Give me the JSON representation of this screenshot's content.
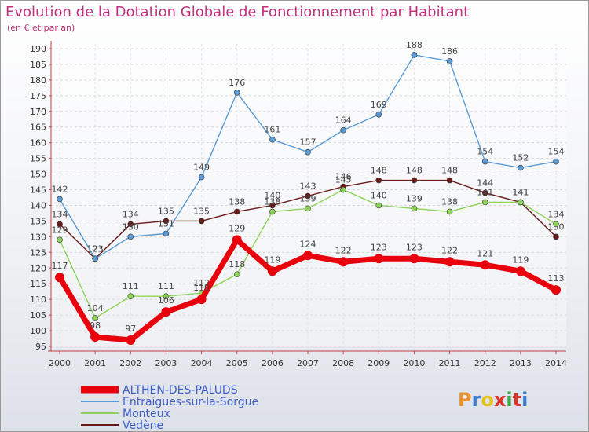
{
  "title": "Evolution de la Dotation Globale de Fonctionnement par Habitant",
  "subtitle": "(en € et par an)",
  "logo": {
    "text": "Proxiti",
    "colors": [
      "#e8902a",
      "#3a7fd0",
      "#e6c21e",
      "#d8342a",
      "#3fa64a",
      "#d8342a",
      "#3a7fd0"
    ]
  },
  "chart_data": {
    "type": "line",
    "x": [
      "2000",
      "2001",
      "2002",
      "2003",
      "2004",
      "2005",
      "2006",
      "2007",
      "2008",
      "2009",
      "2010",
      "2011",
      "2012",
      "2013",
      "2014"
    ],
    "ylim": [
      95,
      190
    ],
    "yticks": [
      95,
      100,
      105,
      110,
      115,
      120,
      125,
      130,
      135,
      140,
      145,
      150,
      155,
      160,
      165,
      170,
      175,
      180,
      185,
      190
    ],
    "grid": true,
    "legend_position": "bottom-left",
    "series": [
      {
        "name": "ALTHEN-DES-PALUDS",
        "color": "#e8000d",
        "values": [
          117,
          98,
          97,
          106,
          110,
          129,
          119,
          124,
          122,
          123,
          123,
          122,
          121,
          119,
          113
        ]
      },
      {
        "name": "Entraigues-sur-la-Sorgue",
        "color": "#5b9bd5",
        "values": [
          142,
          123,
          130,
          131,
          149,
          176,
          161,
          157,
          164,
          169,
          188,
          186,
          154,
          152,
          154
        ]
      },
      {
        "name": "Monteux",
        "color": "#8ed35a",
        "values": [
          129,
          104,
          111,
          111,
          112,
          118,
          138,
          139,
          145,
          140,
          139,
          138,
          141,
          141,
          134
        ]
      },
      {
        "name": "Vedène",
        "color": "#6b1a1a",
        "values": [
          134,
          123,
          134,
          135,
          135,
          138,
          140,
          143,
          146,
          148,
          148,
          148,
          144,
          141,
          130
        ]
      }
    ]
  }
}
